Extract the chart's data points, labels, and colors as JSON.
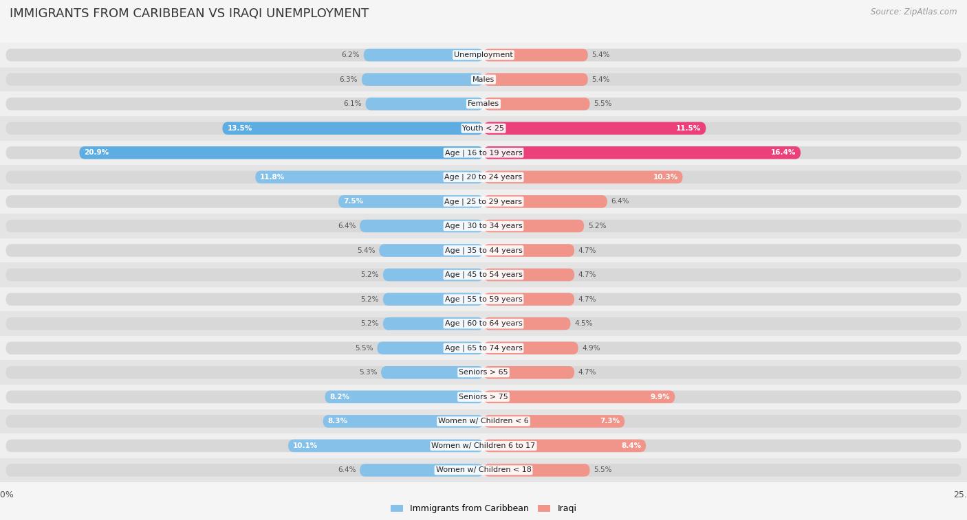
{
  "title": "IMMIGRANTS FROM CARIBBEAN VS IRAQI UNEMPLOYMENT",
  "source": "Source: ZipAtlas.com",
  "categories": [
    "Unemployment",
    "Males",
    "Females",
    "Youth < 25",
    "Age | 16 to 19 years",
    "Age | 20 to 24 years",
    "Age | 25 to 29 years",
    "Age | 30 to 34 years",
    "Age | 35 to 44 years",
    "Age | 45 to 54 years",
    "Age | 55 to 59 years",
    "Age | 60 to 64 years",
    "Age | 65 to 74 years",
    "Seniors > 65",
    "Seniors > 75",
    "Women w/ Children < 6",
    "Women w/ Children 6 to 17",
    "Women w/ Children < 18"
  ],
  "caribbean_values": [
    6.2,
    6.3,
    6.1,
    13.5,
    20.9,
    11.8,
    7.5,
    6.4,
    5.4,
    5.2,
    5.2,
    5.2,
    5.5,
    5.3,
    8.2,
    8.3,
    10.1,
    6.4
  ],
  "iraqi_values": [
    5.4,
    5.4,
    5.5,
    11.5,
    16.4,
    10.3,
    6.4,
    5.2,
    4.7,
    4.7,
    4.7,
    4.5,
    4.9,
    4.7,
    9.9,
    7.3,
    8.4,
    5.5
  ],
  "caribbean_color": "#85c1e9",
  "iraqi_color": "#f1948a",
  "caribbean_color_dark": "#5dade2",
  "iraqi_color_dark": "#ec407a",
  "axis_max": 25.0,
  "background_light": "#efefef",
  "background_dark": "#e4e4e4",
  "bar_track_color": "#d8d8d8",
  "legend_caribbean": "Immigrants from Caribbean",
  "legend_iraqi": "Iraqi",
  "title_fontsize": 13,
  "source_fontsize": 8.5,
  "label_fontsize": 8,
  "value_fontsize": 7.5,
  "bar_height": 0.52,
  "value_inside_threshold": 7.0
}
